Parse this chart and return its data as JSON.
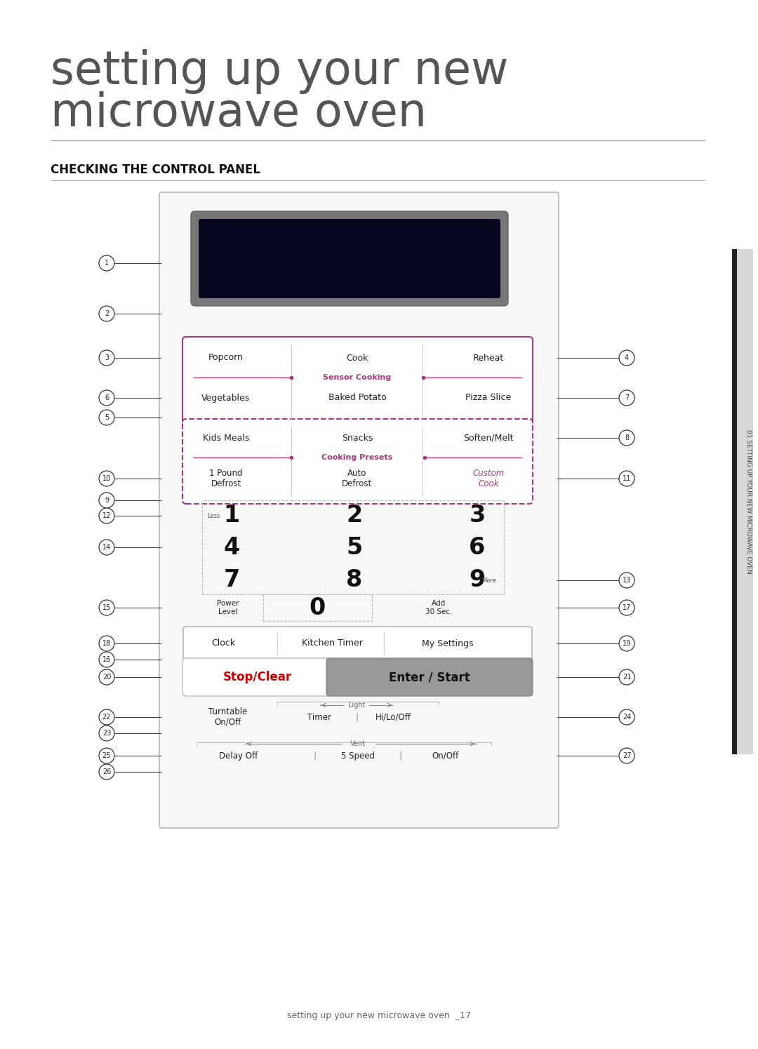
{
  "title_line1": "setting up your new",
  "title_line2": "microwave oven",
  "section_title": "CHECKING THE CONTROL PANEL",
  "sidebar_text": "01 SETTING UP YOUR NEW MICROWAVE OVEN",
  "footer_text": "setting up your new microwave oven  _17",
  "bg_color": "#ffffff",
  "panel_bg": "#f7f7f7",
  "panel_border": "#aaaaaa",
  "display_bg": "#080820",
  "display_outer": "#666666",
  "sensor_border": "#a83878",
  "cooking_border": "#a8387a",
  "sensor_label_color": "#a8387a",
  "custom_cook_color": "#a8387a",
  "stop_clear_color": "#cc0000",
  "enter_start_bg": "#999999",
  "line_color": "#444444",
  "text_color": "#222222",
  "number_bubble_color": "#ffffff",
  "number_bubble_border": "#333333",
  "divider_color": "#cccccc",
  "sidebar_bg": "#d8d8d8",
  "sidebar_black": "#222222"
}
